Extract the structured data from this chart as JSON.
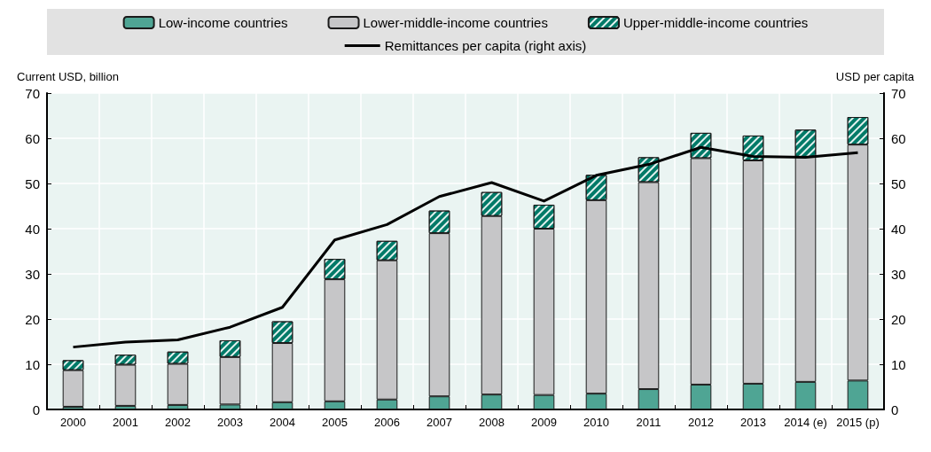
{
  "chart_data": {
    "type": "bar",
    "stacked": true,
    "ylabel": "Current USD, billion",
    "y2label": "USD per capita",
    "categories": [
      "2000",
      "2001",
      "2002",
      "2003",
      "2004",
      "2005",
      "2006",
      "2007",
      "2008",
      "2009",
      "2010",
      "2011",
      "2012",
      "2013",
      "2014 (e)",
      "2015 (p)"
    ],
    "series": [
      {
        "name": "Low-income countries",
        "color": "#4fa594",
        "values": [
          0.6,
          0.8,
          1.0,
          1.1,
          1.6,
          1.8,
          2.2,
          2.9,
          3.3,
          3.2,
          3.5,
          4.5,
          5.5,
          5.7,
          6.1,
          6.4
        ]
      },
      {
        "name": "Lower-middle-income countries",
        "color": "#c6c6c8",
        "values": [
          8.1,
          9.1,
          9.1,
          10.5,
          13.1,
          27.0,
          30.8,
          36.1,
          39.5,
          36.8,
          42.8,
          45.8,
          50.1,
          49.4,
          49.8,
          52.2
        ]
      },
      {
        "name": "Upper-middle-income countries",
        "color": "#007a68",
        "values": [
          2.2,
          2.2,
          2.7,
          3.7,
          4.8,
          4.5,
          4.3,
          5.0,
          5.3,
          5.3,
          5.6,
          5.5,
          5.6,
          5.5,
          6.0,
          6.1
        ]
      },
      {
        "name": "Remittances per capita (right axis)",
        "type": "line",
        "axis": "y2",
        "color": "#000000",
        "values": [
          13.8,
          14.9,
          15.4,
          18.2,
          22.6,
          37.5,
          40.9,
          47.1,
          50.2,
          46.1,
          51.8,
          54.2,
          58.0,
          56.0,
          55.8,
          56.8
        ]
      }
    ],
    "ylim": [
      0,
      70
    ],
    "yticks": [
      0,
      10,
      20,
      30,
      40,
      50,
      60,
      70
    ],
    "y2lim": [
      0,
      70
    ],
    "y2ticks": [
      0,
      10,
      20,
      30,
      40,
      50,
      60,
      70
    ],
    "grid": true,
    "legend": "top",
    "marker": "none"
  }
}
